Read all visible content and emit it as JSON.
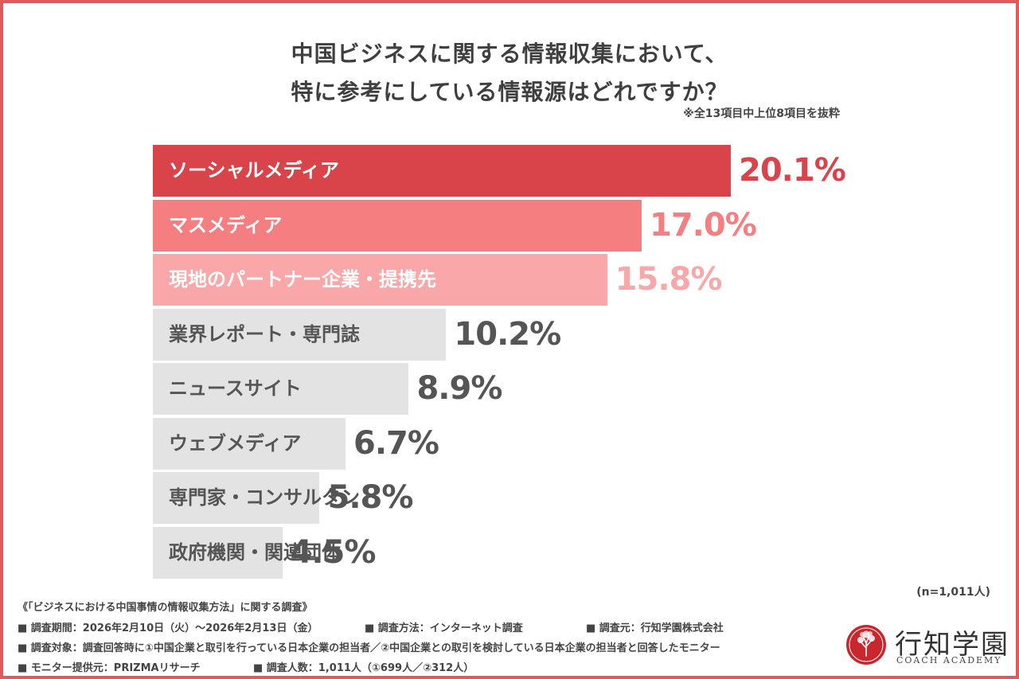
{
  "title": {
    "line1": "中国ビジネスに関する情報収集において、",
    "line2": "特に参考にしている情報源はどれですか？"
  },
  "note": "※全13項目中上位8項目を抜粋",
  "chart_data": {
    "type": "bar",
    "orientation": "horizontal",
    "categories": [
      "ソーシャルメディア",
      "マスメディア",
      "現地のパートナー企業・提携先",
      "業界レポート・専門誌",
      "ニュースサイト",
      "ウェブメディア",
      "専門家・コンサルタント",
      "政府機関・関連団体"
    ],
    "values": [
      20.1,
      17.0,
      15.8,
      10.2,
      8.9,
      6.7,
      5.8,
      4.5
    ],
    "value_labels": [
      "20.1%",
      "17.0%",
      "15.8%",
      "10.2%",
      "8.9%",
      "6.7%",
      "5.8%",
      "4.5%"
    ],
    "bar_colors": [
      "#d9444b",
      "#f47e80",
      "#f9a7a8",
      "#e3e3e3",
      "#e3e3e3",
      "#e3e3e3",
      "#e3e3e3",
      "#e3e3e3"
    ],
    "label_colors": [
      "#ffffff",
      "#ffffff",
      "#ffffff",
      "#555555",
      "#555555",
      "#555555",
      "#555555",
      "#555555"
    ],
    "value_colors": [
      "#d9444b",
      "#f47e80",
      "#f9a7a8",
      "#555555",
      "#555555",
      "#555555",
      "#555555",
      "#555555"
    ]
  },
  "sample_note": "(n=1,011人)",
  "footer": {
    "survey_name": "《「ビジネスにおける中国事情の情報収集方法」に関する調査》",
    "period": "■ 調査期間：2026年2月10日（火）〜2026年2月13日（金）",
    "method": "■ 調査方法：インターネット調査",
    "source": "■ 調査元：行知学園株式会社",
    "target": "■ 調査対象：調査回答時に①中国企業と取引を行っている日本企業の担当者／②中国企業との取引を検討している日本企業の担当者と回答したモニター",
    "provider": "■ モニター提供元：PRIZMAリサーチ",
    "count": "■ 調査人数：1,011人（①699人／②312人）"
  },
  "logo": {
    "name": "行知学園",
    "subtitle": "COACH ACADEMY",
    "seal_color": "#c8282d"
  },
  "colors": {
    "border": "#e05a5c",
    "title": "#3f3f3f"
  }
}
